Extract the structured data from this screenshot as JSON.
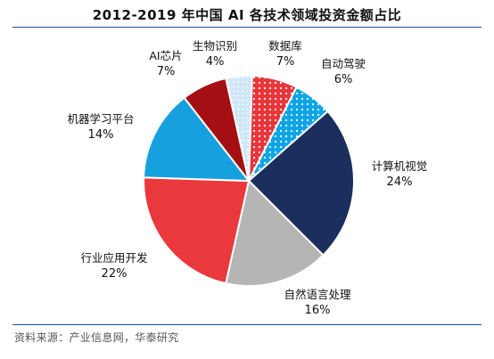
{
  "chart_data": {
    "type": "pie",
    "title": "2012-2019 年中国 AI 各技术领域投资金额占比",
    "unit": "%",
    "slices": [
      {
        "name": "数据库",
        "value": 7,
        "label": "7%",
        "color": "#e8363b",
        "pattern": "dots-white"
      },
      {
        "name": "自动驾驶",
        "value": 6,
        "label": "6%",
        "color": "#0ea5e6",
        "pattern": "dots-white"
      },
      {
        "name": "计算机视觉",
        "value": 24,
        "label": "24%",
        "color": "#1b2f5e",
        "pattern": ""
      },
      {
        "name": "自然语言处理",
        "value": 16,
        "label": "16%",
        "color": "#b5b5b5",
        "pattern": ""
      },
      {
        "name": "行业应用开发",
        "value": 22,
        "label": "22%",
        "color": "#e9393d",
        "pattern": ""
      },
      {
        "name": "机器学习平台",
        "value": 14,
        "label": "14%",
        "color": "#17a0de",
        "pattern": ""
      },
      {
        "name": "AI芯片",
        "value": 7,
        "label": "7%",
        "color": "#a30f12",
        "pattern": ""
      },
      {
        "name": "生物识别",
        "value": 4,
        "label": "4%",
        "color": "#cfe7f7",
        "pattern": "dots-light"
      }
    ]
  },
  "source": "资料来源：产业信息网，华泰研究"
}
